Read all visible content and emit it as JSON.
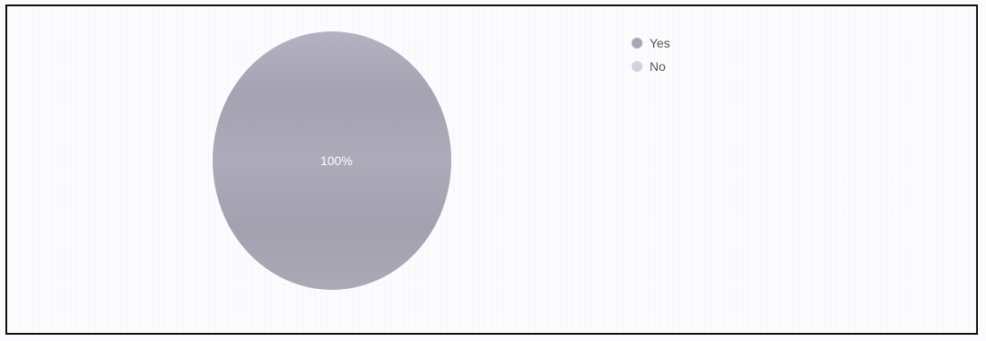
{
  "chart_data": {
    "type": "pie",
    "title": "",
    "categories": [
      "Yes",
      "No"
    ],
    "values": [
      100,
      0
    ],
    "slice_labels": [
      "100%",
      ""
    ],
    "colors": [
      "#a8a7b5",
      "#d2d2de"
    ],
    "legend_position": "top-right"
  }
}
